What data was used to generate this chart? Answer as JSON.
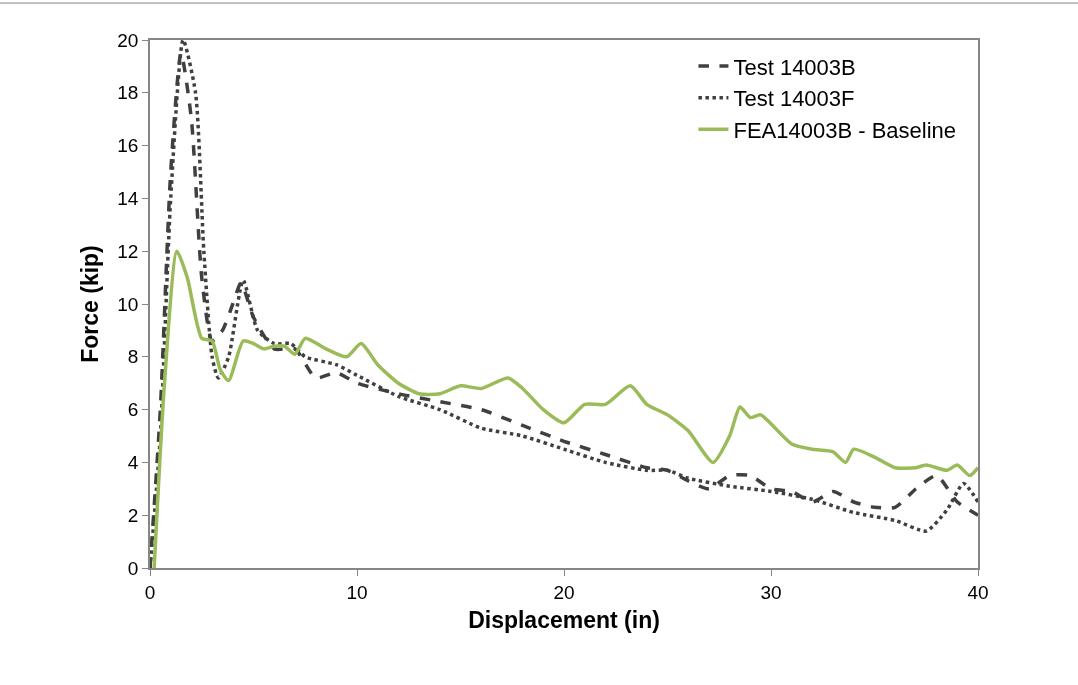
{
  "chart_data": {
    "type": "line",
    "xlabel": "Displacement (in)",
    "ylabel": "Force (kip)",
    "xlim": [
      0,
      40
    ],
    "xticks": [
      0,
      10,
      20,
      30,
      40
    ],
    "ylim": [
      0,
      20
    ],
    "yticks": [
      0,
      2,
      4,
      6,
      8,
      10,
      12,
      14,
      16,
      18,
      20
    ],
    "grid": false,
    "legend": "top right",
    "marker": "none",
    "series": [
      {
        "name": "Test 14003B",
        "color": "#404040",
        "line_style": "dashed",
        "x": [
          0,
          0.5,
          1,
          1.5,
          2,
          2.5,
          3,
          3.5,
          4,
          4.4,
          5,
          6,
          7,
          8,
          9,
          10,
          12,
          14,
          16,
          18,
          20,
          22,
          24,
          25,
          26,
          27,
          28,
          29,
          30,
          31,
          32,
          33,
          34,
          35,
          36,
          37,
          38,
          39,
          40
        ],
        "values": [
          0,
          6,
          15,
          19.5,
          17,
          11,
          8.6,
          9,
          10,
          10.8,
          9.5,
          8.3,
          8.3,
          7.2,
          7.4,
          7.0,
          6.6,
          6.3,
          6.0,
          5.4,
          4.8,
          4.3,
          3.8,
          3.7,
          3.3,
          3.0,
          3.5,
          3.5,
          3.0,
          2.9,
          2.5,
          2.9,
          2.5,
          2.3,
          2.3,
          3.0,
          3.5,
          2.5,
          2.0
        ]
      },
      {
        "name": "Test 14003F",
        "color": "#404040",
        "line_style": "dotted",
        "x": [
          0,
          0.5,
          1,
          1.6,
          2.2,
          2.6,
          3,
          3.3,
          3.8,
          4.5,
          5.2,
          6,
          6.8,
          7.5,
          9,
          10,
          12,
          14,
          16,
          18,
          20,
          22,
          24,
          25,
          26,
          28,
          30,
          32,
          34,
          36,
          37.5,
          38.5,
          39.3,
          40
        ],
        "values": [
          0,
          5,
          14,
          20,
          18,
          12,
          8,
          7.2,
          8,
          10.9,
          9,
          8.5,
          8.5,
          8,
          7.7,
          7.3,
          6.5,
          6.0,
          5.3,
          5.0,
          4.5,
          4.0,
          3.7,
          3.7,
          3.4,
          3.1,
          2.9,
          2.6,
          2.1,
          1.8,
          1.4,
          2.2,
          3.2,
          2.5
        ]
      },
      {
        "name": "FEA14003B - Baseline",
        "color": "#9bbb59",
        "line_style": "solid",
        "x": [
          0.2,
          0.7,
          1.3,
          1.8,
          2.5,
          3,
          3.4,
          3.8,
          4.5,
          5,
          5.5,
          6,
          6.5,
          7,
          7.5,
          8.5,
          9.5,
          10.2,
          11,
          12,
          13,
          14,
          15,
          16,
          17.3,
          18,
          19,
          20,
          21,
          22,
          23.2,
          24,
          25,
          26,
          27.2,
          28,
          28.5,
          29,
          29.5,
          31,
          32,
          33,
          33.6,
          34,
          35,
          36,
          37,
          37.5,
          38.5,
          39,
          39.6,
          40
        ],
        "values": [
          0,
          7,
          12,
          11,
          8.7,
          8.6,
          7.5,
          7.1,
          8.6,
          8.5,
          8.3,
          8.4,
          8.4,
          8.1,
          8.7,
          8.3,
          8.0,
          8.5,
          7.7,
          7.0,
          6.6,
          6.6,
          6.9,
          6.8,
          7.2,
          6.8,
          6.0,
          5.5,
          6.2,
          6.2,
          6.9,
          6.2,
          5.8,
          5.2,
          4.0,
          5.0,
          6.1,
          5.7,
          5.8,
          4.7,
          4.5,
          4.4,
          4.0,
          4.5,
          4.2,
          3.8,
          3.8,
          3.9,
          3.7,
          3.9,
          3.5,
          3.8
        ]
      }
    ]
  }
}
